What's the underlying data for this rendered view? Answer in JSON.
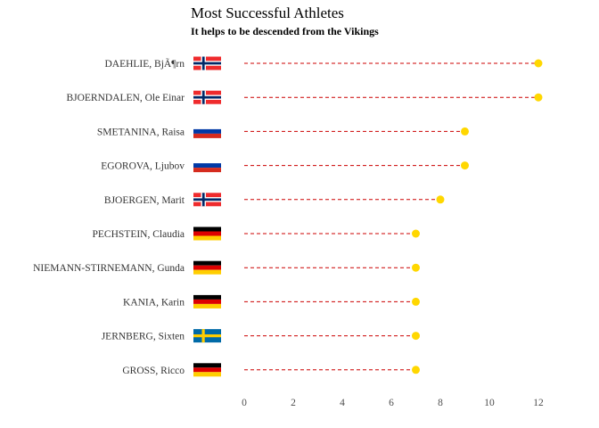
{
  "title": "Most Successful Athletes",
  "subtitle": "It helps to be descended from the Vikings",
  "colors": {
    "point": "#FFD700",
    "stem": "#CC0000",
    "tick_text": "#4d4d4d"
  },
  "chart_data": {
    "type": "lollipop",
    "title": "Most Successful Athletes",
    "subtitle": "It helps to be descended from the Vikings",
    "xlim": [
      0,
      12
    ],
    "x_ticks": [
      0,
      2,
      4,
      6,
      8,
      10,
      12
    ],
    "grid": false,
    "categories": [
      "DAEHLIE, BjÃ¶rn",
      "BJOERNDALEN, Ole Einar",
      "SMETANINA, Raisa",
      "EGOROVA, Ljubov",
      "BJOERGEN, Marit",
      "PECHSTEIN, Claudia",
      "NIEMANN-STIRNEMANN, Gunda",
      "KANIA, Karin",
      "JERNBERG, Sixten",
      "GROSS, Ricco"
    ],
    "flags": [
      "norway",
      "norway",
      "russia",
      "russia",
      "norway",
      "germany",
      "germany",
      "germany",
      "sweden",
      "germany"
    ],
    "values": [
      12,
      12,
      9,
      9,
      8,
      7,
      7,
      7,
      7,
      7
    ]
  }
}
